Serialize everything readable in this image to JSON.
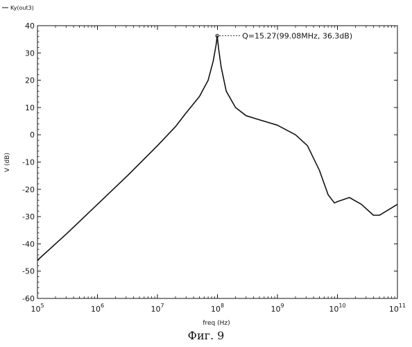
{
  "chart_data": {
    "type": "line",
    "legend": {
      "label": "Ky(out3)",
      "placement": "top-left"
    },
    "xlabel": "freq (Hz)",
    "ylabel": "V (dB)",
    "x_scale": "log",
    "xlim": [
      100000,
      100000000000
    ],
    "ylim": [
      -60,
      40
    ],
    "grid": false,
    "x_ticks": [
      {
        "base": "10",
        "exp": "5"
      },
      {
        "base": "10",
        "exp": "6"
      },
      {
        "base": "10",
        "exp": "7"
      },
      {
        "base": "10",
        "exp": "8"
      },
      {
        "base": "10",
        "exp": "9"
      },
      {
        "base": "10",
        "exp": "10"
      },
      {
        "base": "10",
        "exp": "11"
      }
    ],
    "y_ticks": [
      "40",
      "30",
      "20",
      "10",
      "0",
      "-10",
      "-20",
      "-30",
      "-40",
      "-50",
      "-60"
    ],
    "series": [
      {
        "name": "Ky(out3)",
        "color": "#111111",
        "points": [
          [
            100000,
            -46
          ],
          [
            316228,
            -36
          ],
          [
            1000000,
            -25.5
          ],
          [
            3162278,
            -15
          ],
          [
            10000000,
            -4
          ],
          [
            20000000,
            3
          ],
          [
            30000000,
            8
          ],
          [
            50000000,
            14
          ],
          [
            70000000,
            20
          ],
          [
            85000000,
            27
          ],
          [
            95000000,
            33
          ],
          [
            99080000,
            36.3
          ],
          [
            104000000,
            32
          ],
          [
            115000000,
            25
          ],
          [
            140000000,
            16
          ],
          [
            200000000,
            10
          ],
          [
            300000000,
            7
          ],
          [
            500000000,
            5.5
          ],
          [
            1000000000,
            3.5
          ],
          [
            2000000000,
            0
          ],
          [
            3162278000,
            -4
          ],
          [
            5000000000,
            -13
          ],
          [
            7000000000,
            -22
          ],
          [
            8900000000,
            -25
          ],
          [
            10000000000,
            -24.5
          ],
          [
            15800000000,
            -23
          ],
          [
            25100000000,
            -25.5
          ],
          [
            39800000000,
            -29.5
          ],
          [
            50100000000,
            -29.5
          ],
          [
            70800000000,
            -27.5
          ],
          [
            100000000000,
            -25.5
          ]
        ]
      }
    ],
    "annotations": [
      {
        "text": "Q=15.27(99.08MHz, 36.3dB)",
        "x": 99080000,
        "y": 36.3
      }
    ]
  },
  "caption": "Фиг. 9"
}
